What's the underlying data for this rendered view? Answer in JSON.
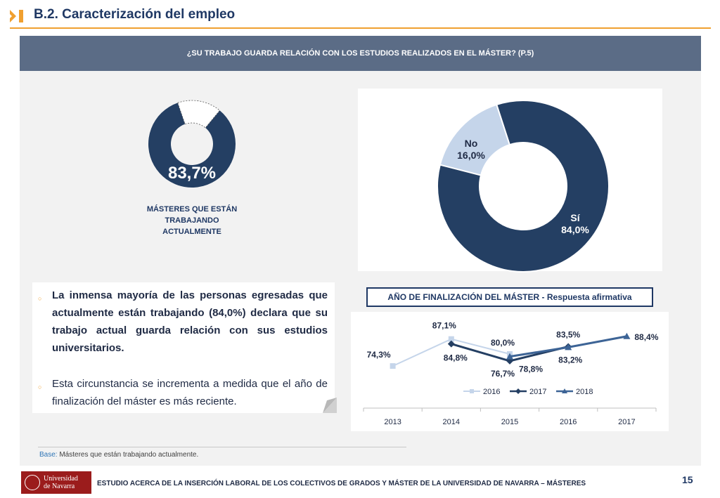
{
  "header": {
    "title": "B.2. Caracterización del empleo"
  },
  "question": "¿SU TRABAJO GUARDA RELACIÓN CON LOS ESTUDIOS REALIZADOS EN EL MÁSTER? (P.5)",
  "working": {
    "value": 83.7,
    "pct_label": "83,7%",
    "label": "MÁSTERES QUE ESTÁN TRABAJANDO ACTUALMENTE"
  },
  "text": {
    "para1": "La inmensa mayoría de las personas egresadas que actualmente están trabajando (84,0%) declara que su trabajo actual guarda relación con sus estudios universitarios.",
    "para2": "Esta circunstancia se incrementa a medida que el año de finalización del máster es más reciente."
  },
  "chart_title": "AÑO DE FINALIZACIÓN DEL MÁSTER - Respuesta afirmativa",
  "base": {
    "key": "Base:",
    "text": " Másteres que están trabajando actualmente."
  },
  "footer": {
    "text": "ESTUDIO ACERCA DE LA INSERCIÓN LABORAL DE LOS COLECTIVOS DE GRADOS Y MÁSTER DE LA UNIVERSIDAD DE NAVARRA – MÁSTERES",
    "page": "15",
    "logo_line1": "Universidad",
    "logo_line2": "de Navarra"
  },
  "colors": {
    "navy": "#243f63",
    "light": "#c5d5ea",
    "mid": "#3d6496",
    "accent": "#f0a030"
  },
  "chart_data": [
    {
      "type": "pie",
      "categories": [
        "No",
        "Sí"
      ],
      "values": [
        16.0,
        84.0
      ],
      "labels": [
        "16,0%",
        "84,0%"
      ]
    },
    {
      "type": "line",
      "x": [
        "2013",
        "2014",
        "2015",
        "2016",
        "2017"
      ],
      "series": [
        {
          "name": "2016",
          "values": [
            74.3,
            87.1,
            80.0,
            null,
            null
          ],
          "labels": [
            "74,3%",
            "87,1%",
            "80,0%",
            "",
            ""
          ]
        },
        {
          "name": "2017",
          "values": [
            null,
            84.8,
            76.7,
            83.5,
            null
          ],
          "labels": [
            "",
            "84,8%",
            "76,7%",
            "83,5%",
            ""
          ]
        },
        {
          "name": "2018",
          "values": [
            null,
            null,
            78.8,
            83.2,
            88.4
          ],
          "labels": [
            "",
            "",
            "78,8%",
            "83,2%",
            "88,4%"
          ]
        }
      ],
      "legend": "inside-bottom"
    }
  ]
}
